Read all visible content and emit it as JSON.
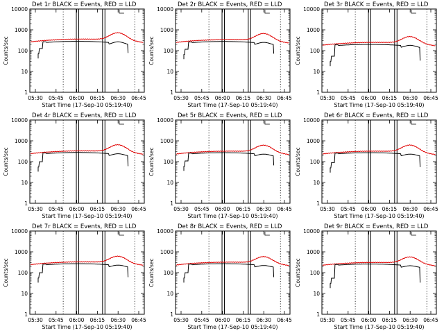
{
  "chart_data": {
    "type": "line",
    "layout": "3x3 grid",
    "shared": {
      "ylabel": "Counts/sec",
      "xlabel": "Start Time (17-Sep-10 05:19:40)",
      "xticks": [
        "05:30",
        "05:45",
        "06:00",
        "06:15",
        "06:30",
        "06:45"
      ],
      "yticks": [
        "1",
        "10",
        "100",
        "1000",
        "10000"
      ],
      "yscale": "log",
      "ylim": [
        1,
        10000
      ],
      "xlim_minutes": [
        20,
        68
      ],
      "vlines_dotted_minutes": [
        34,
        64
      ],
      "vlines_solid_pairs_minutes": [
        [
          39.5,
          40.5
        ],
        [
          50.5,
          51.5
        ]
      ],
      "colors": {
        "events": "#000000",
        "lld": "#e00000"
      },
      "series_names": [
        "Events",
        "LLD"
      ]
    },
    "panels": [
      {
        "title": "Det 1r BLACK = Events, RED = LLD",
        "lld_base": 360,
        "lld_peak": 760,
        "ev_base": 280,
        "ev_peak": 265,
        "ev_start": 70
      },
      {
        "title": "Det 2r BLACK = Events, RED = LLD",
        "lld_base": 340,
        "lld_peak": 700,
        "ev_base": 275,
        "ev_peak": 250,
        "ev_start": 65
      },
      {
        "title": "Det 3r BLACK = Events, RED = LLD",
        "lld_base": 250,
        "lld_peak": 500,
        "ev_base": 200,
        "ev_peak": 180,
        "ev_start": 30
      },
      {
        "title": "Det 4r BLACK = Events, RED = LLD",
        "lld_base": 330,
        "lld_peak": 680,
        "ev_base": 275,
        "ev_peak": 240,
        "ev_start": 55
      },
      {
        "title": "Det 5r BLACK = Events, RED = LLD",
        "lld_base": 320,
        "lld_peak": 650,
        "ev_base": 270,
        "ev_peak": 230,
        "ev_start": 60
      },
      {
        "title": "Det 6r BLACK = Events, RED = LLD",
        "lld_base": 320,
        "lld_peak": 660,
        "ev_base": 270,
        "ev_peak": 230,
        "ev_start": 50
      },
      {
        "title": "Det 7r BLACK = Events, RED = LLD",
        "lld_base": 330,
        "lld_peak": 650,
        "ev_base": 270,
        "ev_peak": 230,
        "ev_start": 55
      },
      {
        "title": "Det 8r BLACK = Events, RED = LLD",
        "lld_base": 320,
        "lld_peak": 620,
        "ev_base": 270,
        "ev_peak": 220,
        "ev_start": 55
      },
      {
        "title": "Det 9r BLACK = Events, RED = LLD",
        "lld_base": 310,
        "lld_peak": 600,
        "ev_base": 260,
        "ev_peak": 215,
        "ev_start": 30
      }
    ]
  }
}
